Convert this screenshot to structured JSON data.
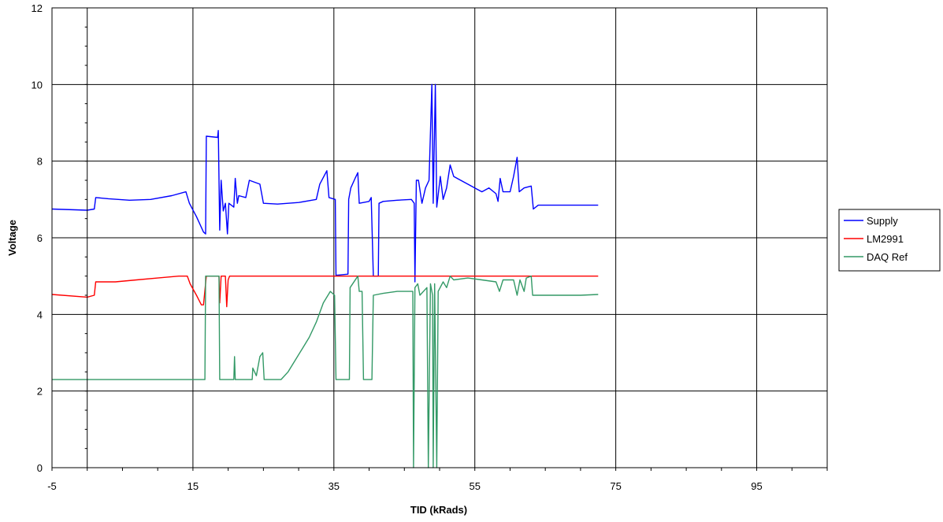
{
  "chart_data": {
    "type": "line",
    "title": "",
    "xlabel": "TID (kRads)",
    "ylabel": "Voltage",
    "xlim": [
      -5,
      105
    ],
    "ylim": [
      0,
      12
    ],
    "x_ticks": [
      -5,
      15,
      35,
      55,
      75,
      95
    ],
    "y_ticks": [
      0,
      2,
      4,
      6,
      8,
      10,
      12
    ],
    "grid": true,
    "legend_position": "right",
    "series": [
      {
        "name": "Supply",
        "color": "#0000ff",
        "points": [
          [
            -5,
            6.75
          ],
          [
            0,
            6.72
          ],
          [
            1,
            6.75
          ],
          [
            1.2,
            7.05
          ],
          [
            3,
            7.02
          ],
          [
            6,
            6.98
          ],
          [
            9,
            7.0
          ],
          [
            12,
            7.1
          ],
          [
            14,
            7.2
          ],
          [
            14.5,
            6.9
          ],
          [
            15.5,
            6.55
          ],
          [
            16.5,
            6.15
          ],
          [
            16.8,
            6.1
          ],
          [
            16.9,
            8.65
          ],
          [
            18.5,
            8.62
          ],
          [
            18.6,
            8.8
          ],
          [
            18.8,
            6.2
          ],
          [
            19,
            7.5
          ],
          [
            19.3,
            6.7
          ],
          [
            19.6,
            6.9
          ],
          [
            19.9,
            6.1
          ],
          [
            20.1,
            6.9
          ],
          [
            20.8,
            6.8
          ],
          [
            21,
            7.55
          ],
          [
            21.3,
            6.9
          ],
          [
            21.5,
            7.1
          ],
          [
            22.5,
            7.05
          ],
          [
            23,
            7.5
          ],
          [
            24.5,
            7.4
          ],
          [
            25,
            6.9
          ],
          [
            27,
            6.88
          ],
          [
            30,
            6.92
          ],
          [
            32.5,
            7.0
          ],
          [
            33,
            7.4
          ],
          [
            34,
            7.75
          ],
          [
            34.3,
            7.05
          ],
          [
            35.2,
            7.0
          ],
          [
            35.3,
            5.02
          ],
          [
            37,
            5.05
          ],
          [
            37.1,
            7.0
          ],
          [
            37.4,
            7.3
          ],
          [
            38,
            7.55
          ],
          [
            38.4,
            7.7
          ],
          [
            38.6,
            6.9
          ],
          [
            40,
            6.95
          ],
          [
            40.3,
            7.05
          ],
          [
            40.6,
            5.0
          ],
          [
            41.3,
            5.0
          ],
          [
            41.4,
            6.9
          ],
          [
            42,
            6.95
          ],
          [
            44,
            6.98
          ],
          [
            46,
            7.0
          ],
          [
            46.4,
            6.9
          ],
          [
            46.5,
            4.85
          ],
          [
            46.7,
            7.5
          ],
          [
            47,
            7.5
          ],
          [
            47.5,
            6.9
          ],
          [
            48,
            7.3
          ],
          [
            48.5,
            7.5
          ],
          [
            48.9,
            10.0
          ],
          [
            49.1,
            6.9
          ],
          [
            49.4,
            10.0
          ],
          [
            49.6,
            6.8
          ],
          [
            50.1,
            7.6
          ],
          [
            50.5,
            7.0
          ],
          [
            51,
            7.3
          ],
          [
            51.5,
            7.9
          ],
          [
            52,
            7.6
          ],
          [
            53,
            7.5
          ],
          [
            54,
            7.4
          ],
          [
            55,
            7.3
          ],
          [
            56,
            7.2
          ],
          [
            57,
            7.3
          ],
          [
            58,
            7.15
          ],
          [
            58.3,
            6.95
          ],
          [
            58.6,
            7.55
          ],
          [
            59,
            7.2
          ],
          [
            60,
            7.2
          ],
          [
            60.5,
            7.6
          ],
          [
            61,
            8.1
          ],
          [
            61.3,
            7.2
          ],
          [
            62,
            7.3
          ],
          [
            63,
            7.35
          ],
          [
            63.3,
            6.75
          ],
          [
            64,
            6.85
          ],
          [
            66,
            6.85
          ],
          [
            68,
            6.85
          ],
          [
            70,
            6.85
          ],
          [
            72.5,
            6.85
          ]
        ]
      },
      {
        "name": "LM2991",
        "color": "#ff0000",
        "points": [
          [
            -5,
            4.52
          ],
          [
            0,
            4.45
          ],
          [
            1,
            4.5
          ],
          [
            1.2,
            4.85
          ],
          [
            4,
            4.85
          ],
          [
            7,
            4.9
          ],
          [
            10,
            4.95
          ],
          [
            13,
            5.0
          ],
          [
            14.2,
            5.0
          ],
          [
            14.6,
            4.8
          ],
          [
            15.5,
            4.5
          ],
          [
            16.2,
            4.25
          ],
          [
            16.5,
            4.25
          ],
          [
            16.9,
            5.0
          ],
          [
            18.7,
            5.0
          ],
          [
            18.8,
            4.3
          ],
          [
            19.0,
            5.0
          ],
          [
            19.6,
            5.0
          ],
          [
            19.8,
            4.2
          ],
          [
            20.0,
            4.9
          ],
          [
            20.2,
            5.0
          ],
          [
            72.5,
            5.0
          ]
        ]
      },
      {
        "name": "DAQ Ref",
        "color": "#339966",
        "points": [
          [
            -5,
            2.3
          ],
          [
            16.7,
            2.3
          ],
          [
            16.8,
            5.0
          ],
          [
            18.7,
            5.0
          ],
          [
            18.8,
            2.3
          ],
          [
            20.8,
            2.3
          ],
          [
            20.9,
            2.9
          ],
          [
            21.0,
            2.3
          ],
          [
            23.4,
            2.3
          ],
          [
            23.5,
            2.6
          ],
          [
            24,
            2.4
          ],
          [
            24.5,
            2.9
          ],
          [
            24.9,
            3.0
          ],
          [
            25.1,
            2.3
          ],
          [
            27.5,
            2.3
          ],
          [
            28.5,
            2.5
          ],
          [
            29.5,
            2.8
          ],
          [
            30.5,
            3.1
          ],
          [
            31.5,
            3.4
          ],
          [
            32.5,
            3.8
          ],
          [
            33.5,
            4.3
          ],
          [
            34.5,
            4.6
          ],
          [
            35.1,
            4.5
          ],
          [
            35.3,
            2.3
          ],
          [
            37.2,
            2.3
          ],
          [
            37.3,
            4.7
          ],
          [
            38.4,
            5.0
          ],
          [
            38.6,
            4.6
          ],
          [
            39.0,
            4.6
          ],
          [
            39.2,
            2.3
          ],
          [
            40.4,
            2.3
          ],
          [
            40.6,
            4.5
          ],
          [
            42,
            4.55
          ],
          [
            44,
            4.6
          ],
          [
            46.2,
            4.6
          ],
          [
            46.3,
            0.0
          ],
          [
            46.5,
            4.7
          ],
          [
            46.9,
            4.8
          ],
          [
            47.2,
            4.5
          ],
          [
            48.2,
            4.7
          ],
          [
            48.4,
            0.0
          ],
          [
            48.7,
            4.8
          ],
          [
            49.0,
            4.5
          ],
          [
            49.1,
            0.0
          ],
          [
            49.3,
            4.8
          ],
          [
            49.6,
            0.0
          ],
          [
            49.8,
            4.6
          ],
          [
            50.5,
            4.85
          ],
          [
            51,
            4.7
          ],
          [
            51.5,
            5.0
          ],
          [
            52,
            4.9
          ],
          [
            54,
            4.95
          ],
          [
            56,
            4.9
          ],
          [
            58,
            4.85
          ],
          [
            58.5,
            4.6
          ],
          [
            59,
            4.9
          ],
          [
            60.5,
            4.9
          ],
          [
            61,
            4.5
          ],
          [
            61.4,
            4.9
          ],
          [
            62,
            4.6
          ],
          [
            62.3,
            4.95
          ],
          [
            63.0,
            5.0
          ],
          [
            63.2,
            4.5
          ],
          [
            66,
            4.5
          ],
          [
            70,
            4.5
          ],
          [
            72.5,
            4.52
          ]
        ]
      }
    ]
  }
}
